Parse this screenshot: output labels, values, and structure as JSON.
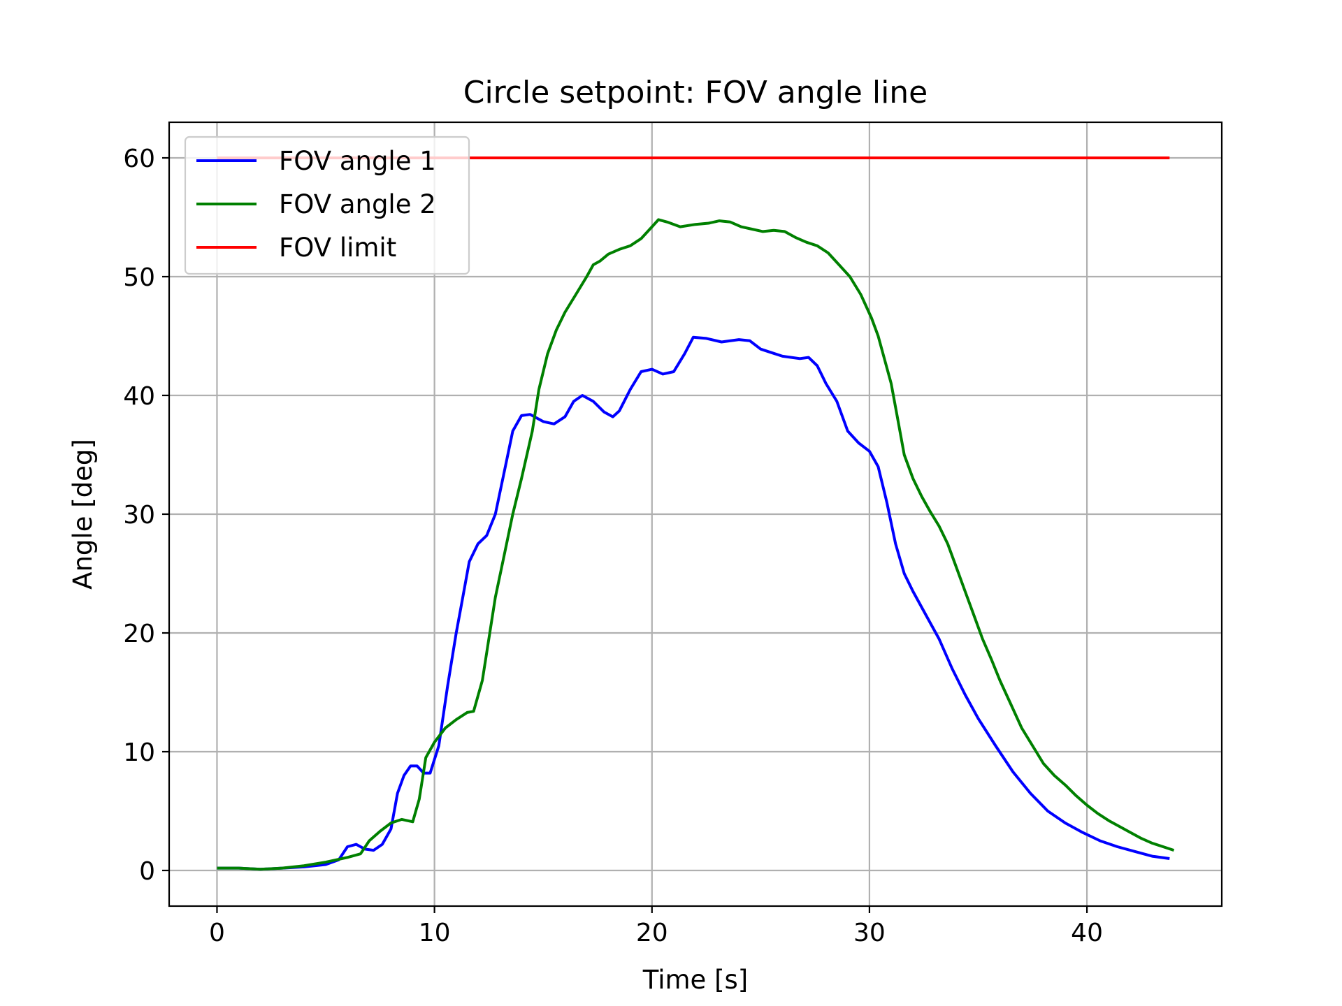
{
  "chart_data": {
    "type": "line",
    "title": "Circle setpoint: FOV angle line",
    "xlabel": "Time [s]",
    "ylabel": "Angle [deg]",
    "xlim": [
      -2.2,
      46.2
    ],
    "ylim": [
      -3,
      63
    ],
    "xticks": [
      0,
      10,
      20,
      30,
      40
    ],
    "yticks": [
      0,
      10,
      20,
      30,
      40,
      50,
      60
    ],
    "grid": true,
    "legend_position": "top-left",
    "series": [
      {
        "name": "FOV angle 1",
        "color": "#0000ff",
        "points": [
          [
            0,
            0.2
          ],
          [
            1,
            0.2
          ],
          [
            2,
            0.1
          ],
          [
            3,
            0.2
          ],
          [
            4,
            0.3
          ],
          [
            5,
            0.5
          ],
          [
            5.6,
            0.9
          ],
          [
            6,
            2.0
          ],
          [
            6.4,
            2.2
          ],
          [
            6.8,
            1.8
          ],
          [
            7.2,
            1.7
          ],
          [
            7.6,
            2.2
          ],
          [
            8,
            3.5
          ],
          [
            8.3,
            6.5
          ],
          [
            8.6,
            8.0
          ],
          [
            8.9,
            8.8
          ],
          [
            9.2,
            8.8
          ],
          [
            9.5,
            8.2
          ],
          [
            9.8,
            8.2
          ],
          [
            10.2,
            10.5
          ],
          [
            10.6,
            15.5
          ],
          [
            11,
            20
          ],
          [
            11.2,
            22
          ],
          [
            11.4,
            24
          ],
          [
            11.6,
            26
          ],
          [
            12,
            27.5
          ],
          [
            12.4,
            28.2
          ],
          [
            12.8,
            30
          ],
          [
            13.2,
            33.5
          ],
          [
            13.6,
            37
          ],
          [
            14,
            38.3
          ],
          [
            14.4,
            38.4
          ],
          [
            15,
            37.8
          ],
          [
            15.5,
            37.6
          ],
          [
            16,
            38.2
          ],
          [
            16.4,
            39.5
          ],
          [
            16.8,
            40.0
          ],
          [
            17.3,
            39.5
          ],
          [
            17.8,
            38.6
          ],
          [
            18.2,
            38.2
          ],
          [
            18.5,
            38.7
          ],
          [
            19,
            40.5
          ],
          [
            19.5,
            42.0
          ],
          [
            20,
            42.2
          ],
          [
            20.5,
            41.8
          ],
          [
            21,
            42.0
          ],
          [
            21.5,
            43.5
          ],
          [
            21.9,
            44.9
          ],
          [
            22.5,
            44.8
          ],
          [
            23.2,
            44.5
          ],
          [
            24,
            44.7
          ],
          [
            24.5,
            44.6
          ],
          [
            25,
            43.9
          ],
          [
            25.5,
            43.6
          ],
          [
            26,
            43.3
          ],
          [
            26.8,
            43.1
          ],
          [
            27.2,
            43.2
          ],
          [
            27.6,
            42.5
          ],
          [
            28,
            41.0
          ],
          [
            28.5,
            39.5
          ],
          [
            29,
            37.0
          ],
          [
            29.5,
            36.0
          ],
          [
            30,
            35.3
          ],
          [
            30.4,
            34.0
          ],
          [
            30.8,
            31.0
          ],
          [
            31.2,
            27.5
          ],
          [
            31.6,
            25.0
          ],
          [
            32,
            23.5
          ],
          [
            32.6,
            21.5
          ],
          [
            33.2,
            19.5
          ],
          [
            33.8,
            17.0
          ],
          [
            34.4,
            14.8
          ],
          [
            35,
            12.8
          ],
          [
            35.8,
            10.5
          ],
          [
            36.6,
            8.3
          ],
          [
            37.4,
            6.5
          ],
          [
            38.2,
            5.0
          ],
          [
            39,
            4.0
          ],
          [
            39.8,
            3.2
          ],
          [
            40.6,
            2.5
          ],
          [
            41.4,
            2.0
          ],
          [
            42.2,
            1.6
          ],
          [
            43,
            1.2
          ],
          [
            43.8,
            1.0
          ]
        ]
      },
      {
        "name": "FOV angle 2",
        "color": "#008000",
        "points": [
          [
            0,
            0.2
          ],
          [
            1,
            0.2
          ],
          [
            2,
            0.1
          ],
          [
            3,
            0.2
          ],
          [
            4,
            0.4
          ],
          [
            5,
            0.7
          ],
          [
            6,
            1.1
          ],
          [
            6.6,
            1.4
          ],
          [
            7,
            2.5
          ],
          [
            7.5,
            3.3
          ],
          [
            8,
            4.0
          ],
          [
            8.5,
            4.3
          ],
          [
            9,
            4.1
          ],
          [
            9.3,
            6.0
          ],
          [
            9.6,
            9.5
          ],
          [
            10,
            10.8
          ],
          [
            10.5,
            12.0
          ],
          [
            11,
            12.7
          ],
          [
            11.5,
            13.3
          ],
          [
            11.8,
            13.4
          ],
          [
            12.2,
            16
          ],
          [
            12.5,
            19.5
          ],
          [
            12.8,
            23
          ],
          [
            13.2,
            26.5
          ],
          [
            13.6,
            30
          ],
          [
            14,
            33
          ],
          [
            14.5,
            37.0
          ],
          [
            14.8,
            40.5
          ],
          [
            15.2,
            43.5
          ],
          [
            15.6,
            45.5
          ],
          [
            16,
            47.0
          ],
          [
            16.5,
            48.5
          ],
          [
            17,
            50.0
          ],
          [
            17.3,
            51.0
          ],
          [
            17.6,
            51.3
          ],
          [
            18,
            51.9
          ],
          [
            18.5,
            52.3
          ],
          [
            19,
            52.6
          ],
          [
            19.5,
            53.2
          ],
          [
            20,
            54.2
          ],
          [
            20.3,
            54.8
          ],
          [
            20.7,
            54.6
          ],
          [
            21.3,
            54.2
          ],
          [
            22,
            54.4
          ],
          [
            22.6,
            54.5
          ],
          [
            23.1,
            54.7
          ],
          [
            23.6,
            54.6
          ],
          [
            24.1,
            54.2
          ],
          [
            24.6,
            54.0
          ],
          [
            25.1,
            53.8
          ],
          [
            25.6,
            53.9
          ],
          [
            26.1,
            53.8
          ],
          [
            26.6,
            53.3
          ],
          [
            27.1,
            52.9
          ],
          [
            27.6,
            52.6
          ],
          [
            28.1,
            52.0
          ],
          [
            28.6,
            51.0
          ],
          [
            29.1,
            50.0
          ],
          [
            29.6,
            48.5
          ],
          [
            30.1,
            46.5
          ],
          [
            30.4,
            45.0
          ],
          [
            30.7,
            43.0
          ],
          [
            31,
            41.0
          ],
          [
            31.3,
            38.0
          ],
          [
            31.6,
            35.0
          ],
          [
            32,
            33.0
          ],
          [
            32.4,
            31.5
          ],
          [
            32.8,
            30.2
          ],
          [
            33.2,
            29.0
          ],
          [
            33.6,
            27.5
          ],
          [
            34,
            25.5
          ],
          [
            34.4,
            23.5
          ],
          [
            34.8,
            21.5
          ],
          [
            35.2,
            19.5
          ],
          [
            35.6,
            17.8
          ],
          [
            36,
            16.0
          ],
          [
            36.5,
            14.0
          ],
          [
            37,
            12.0
          ],
          [
            37.5,
            10.5
          ],
          [
            38,
            9.0
          ],
          [
            38.5,
            8.0
          ],
          [
            39,
            7.2
          ],
          [
            39.5,
            6.3
          ],
          [
            40,
            5.5
          ],
          [
            40.5,
            4.8
          ],
          [
            41,
            4.2
          ],
          [
            41.5,
            3.7
          ],
          [
            42,
            3.2
          ],
          [
            42.5,
            2.7
          ],
          [
            43,
            2.3
          ],
          [
            43.5,
            2.0
          ],
          [
            44,
            1.7
          ]
        ]
      },
      {
        "name": "FOV limit",
        "color": "#ff0000",
        "points": [
          [
            0,
            60
          ],
          [
            43.8,
            60
          ]
        ]
      }
    ]
  }
}
